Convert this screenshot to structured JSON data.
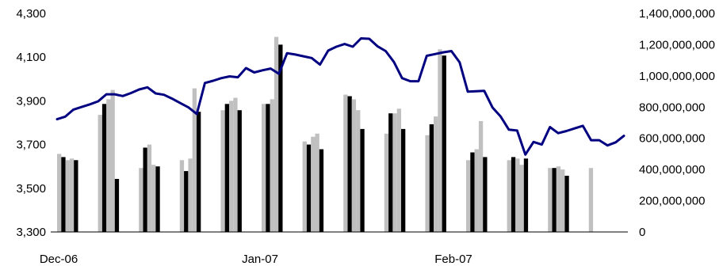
{
  "chart_data": {
    "type": "bar",
    "x_ticks": [
      "Dec-06",
      "Jan-07",
      "Feb-07"
    ],
    "y_left": {
      "min": 3300,
      "max": 4300,
      "ticks": [
        3300,
        3500,
        3700,
        3900,
        4100,
        4300
      ]
    },
    "y_left_tick_labels": [
      "3,300",
      "3,500",
      "3,700",
      "3,900",
      "4,100",
      "4,300"
    ],
    "y_right": {
      "min": 0,
      "max": 1400000000,
      "ticks": [
        0,
        200000000,
        400000000,
        600000000,
        800000000,
        1000000000,
        1200000000,
        1400000000
      ]
    },
    "y_right_tick_labels": [
      "0",
      "200,000,000",
      "400,000,000",
      "600,000,000",
      "800,000,000",
      "1,000,000,000",
      "1,200,000,000",
      "1,400,000,000"
    ],
    "bars": {
      "axis": "right",
      "weeks": [
        [
          500000000,
          480000000,
          460000000,
          470000000,
          460000000
        ],
        [
          750000000,
          820000000,
          850000000,
          910000000,
          340000000
        ],
        [
          410000000,
          540000000,
          560000000,
          430000000,
          420000000
        ],
        [
          460000000,
          390000000,
          470000000,
          920000000,
          770000000
        ],
        [
          780000000,
          820000000,
          840000000,
          860000000,
          780000000
        ],
        [
          820000000,
          820000000,
          850000000,
          1250000000,
          1200000000
        ],
        [
          580000000,
          560000000,
          610000000,
          630000000,
          530000000
        ],
        [
          880000000,
          870000000,
          850000000,
          780000000,
          660000000
        ],
        [
          630000000,
          760000000,
          760000000,
          790000000,
          660000000
        ],
        [
          620000000,
          690000000,
          740000000,
          1170000000,
          1130000000
        ],
        [
          460000000,
          510000000,
          530000000,
          710000000,
          480000000
        ],
        [
          460000000,
          480000000,
          470000000,
          430000000,
          470000000
        ],
        [
          410000000,
          410000000,
          420000000,
          400000000,
          360000000
        ],
        [
          410000000
        ]
      ]
    },
    "line": {
      "axis": "left",
      "color": "#000080",
      "values": [
        3816,
        3828,
        3860,
        3872,
        3884,
        3898,
        3930,
        3930,
        3922,
        3936,
        3952,
        3962,
        3934,
        3928,
        3910,
        3890,
        3870,
        3840,
        3982,
        3992,
        4004,
        4012,
        4008,
        4050,
        4030,
        4040,
        4048,
        4024,
        4118,
        4112,
        4104,
        4096,
        4066,
        4130,
        4148,
        4160,
        4148,
        4186,
        4184,
        4150,
        4128,
        4078,
        4004,
        3990,
        3990,
        4106,
        4114,
        4122,
        4128,
        4076,
        3942,
        3944,
        3946,
        3870,
        3828,
        3768,
        3764,
        3654,
        3712,
        3700,
        3780,
        3752,
        3762,
        3774,
        3786,
        3720,
        3720,
        3696,
        3710,
        3740
      ]
    }
  }
}
